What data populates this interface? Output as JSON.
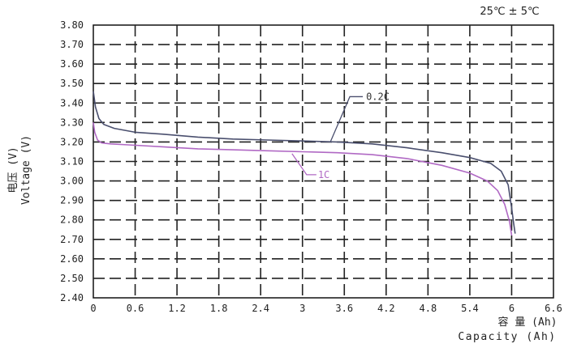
{
  "chart_data": {
    "type": "line",
    "title": "",
    "subtitle": "25℃ ± 5℃",
    "xlabel_cn": "容 量 (Ah)",
    "xlabel_en": "Capacity (Ah)",
    "ylabel_cn": "电压 (V)",
    "ylabel_en": "Voltage (V)",
    "xlim": [
      0,
      6.6
    ],
    "ylim": [
      2.4,
      3.8
    ],
    "x_ticks": [
      "0",
      "0.6",
      "1.2",
      "1.8",
      "2.4",
      "3",
      "3.6",
      "4.2",
      "4.8",
      "5.4",
      "6",
      "6.6"
    ],
    "x_tick_values": [
      0,
      0.6,
      1.2,
      1.8,
      2.4,
      3.0,
      3.6,
      4.2,
      4.8,
      5.4,
      6.0,
      6.6
    ],
    "y_ticks": [
      "2.40",
      "2.50",
      "2.60",
      "2.70",
      "2.80",
      "2.90",
      "3.00",
      "3.10",
      "3.20",
      "3.30",
      "3.40",
      "3.50",
      "3.60",
      "3.70",
      "3.80"
    ],
    "y_tick_values": [
      2.4,
      2.5,
      2.6,
      2.7,
      2.8,
      2.9,
      3.0,
      3.1,
      3.2,
      3.3,
      3.4,
      3.5,
      3.6,
      3.7,
      3.8
    ],
    "grid": true,
    "series": [
      {
        "name": "0.2C",
        "color": "#4a4f6e",
        "x": [
          0,
          0.03,
          0.08,
          0.15,
          0.3,
          0.6,
          1.0,
          1.5,
          2.0,
          2.5,
          3.0,
          3.5,
          4.0,
          4.5,
          5.0,
          5.4,
          5.7,
          5.85,
          5.95,
          6.0,
          6.03,
          6.05
        ],
        "y": [
          3.46,
          3.38,
          3.32,
          3.29,
          3.27,
          3.25,
          3.24,
          3.225,
          3.215,
          3.21,
          3.205,
          3.2,
          3.19,
          3.17,
          3.145,
          3.12,
          3.09,
          3.05,
          2.98,
          2.86,
          2.78,
          2.73
        ]
      },
      {
        "name": "1C",
        "color": "#b069c4",
        "x": [
          0,
          0.02,
          0.06,
          0.12,
          0.25,
          0.5,
          1.0,
          1.5,
          2.0,
          2.5,
          3.0,
          3.5,
          4.0,
          4.5,
          5.0,
          5.4,
          5.65,
          5.8,
          5.9,
          5.97,
          6.0
        ],
        "y": [
          3.3,
          3.25,
          3.21,
          3.195,
          3.19,
          3.185,
          3.175,
          3.165,
          3.16,
          3.155,
          3.15,
          3.145,
          3.135,
          3.115,
          3.08,
          3.04,
          3.0,
          2.95,
          2.88,
          2.79,
          2.72
        ]
      }
    ],
    "annotations": [
      {
        "text": "0.2C",
        "x": 3.4,
        "y": 3.2
      },
      {
        "text": "1C",
        "x": 2.85,
        "y": 3.14
      }
    ]
  }
}
